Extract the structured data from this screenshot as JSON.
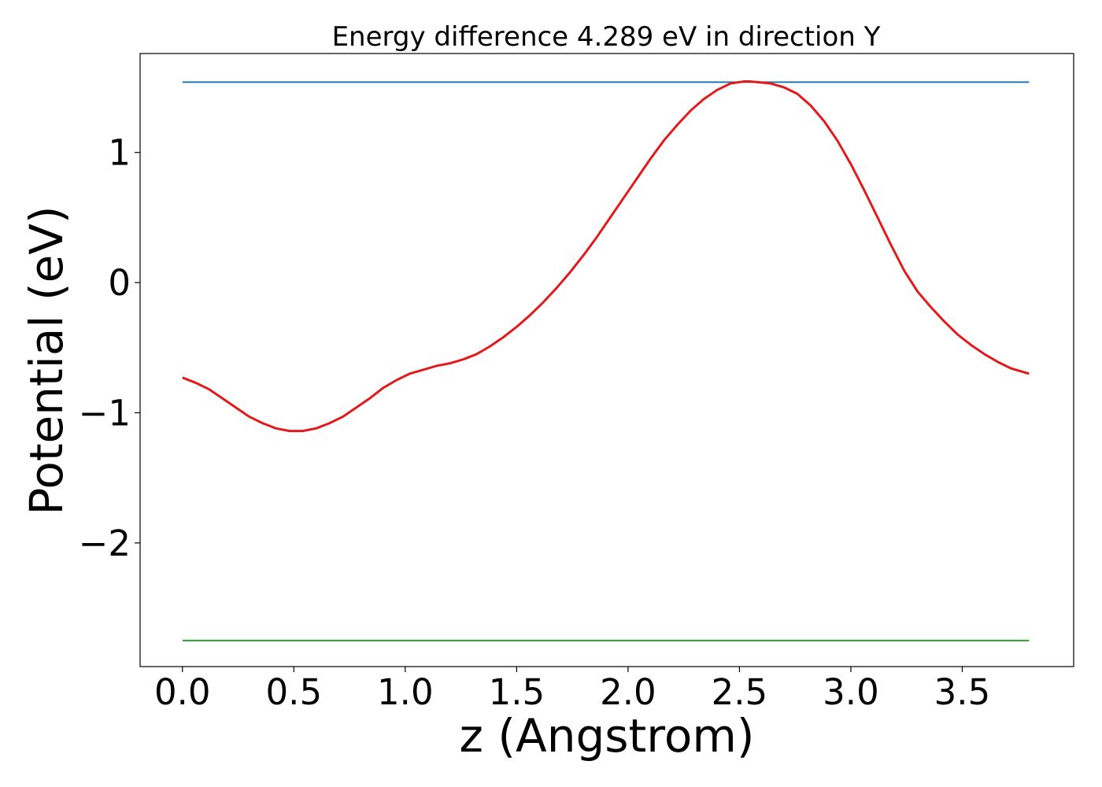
{
  "chart_data": {
    "type": "line",
    "title": "Energy difference 4.289 eV in direction Y",
    "xlabel": "z (Angstrom)",
    "ylabel": "Potential (eV)",
    "xlim": [
      -0.19,
      4.0
    ],
    "ylim": [
      -2.95,
      1.76
    ],
    "xticks": [
      0.0,
      0.5,
      1.0,
      1.5,
      2.0,
      2.5,
      3.0,
      3.5
    ],
    "xtick_labels": [
      "0.0",
      "0.5",
      "1.0",
      "1.5",
      "2.0",
      "2.5",
      "3.0",
      "3.5"
    ],
    "yticks": [
      -2,
      -1,
      0,
      1
    ],
    "ytick_labels": [
      "−2",
      "−1",
      "0",
      "1"
    ],
    "grid": false,
    "series": [
      {
        "color": "#1f77b4",
        "x": [
          0.0,
          3.8
        ],
        "y": [
          1.54,
          1.54
        ]
      },
      {
        "color": "#2ca02c",
        "x": [
          0.0,
          3.8
        ],
        "y": [
          -2.75,
          -2.75
        ]
      },
      {
        "color": "#e31a1c",
        "x": [
          0.0,
          0.06,
          0.12,
          0.18,
          0.24,
          0.3,
          0.36,
          0.42,
          0.48,
          0.54,
          0.6,
          0.66,
          0.72,
          0.78,
          0.84,
          0.9,
          0.96,
          1.02,
          1.08,
          1.14,
          1.2,
          1.26,
          1.32,
          1.38,
          1.44,
          1.5,
          1.56,
          1.62,
          1.68,
          1.74,
          1.8,
          1.86,
          1.92,
          1.98,
          2.04,
          2.1,
          2.16,
          2.22,
          2.28,
          2.34,
          2.4,
          2.46,
          2.52,
          2.55,
          2.58,
          2.64,
          2.7,
          2.76,
          2.82,
          2.88,
          2.94,
          3.0,
          3.06,
          3.12,
          3.18,
          3.24,
          3.3,
          3.36,
          3.42,
          3.48,
          3.54,
          3.6,
          3.66,
          3.72,
          3.8
        ],
        "y": [
          -0.73,
          -0.77,
          -0.82,
          -0.89,
          -0.96,
          -1.03,
          -1.08,
          -1.12,
          -1.14,
          -1.14,
          -1.12,
          -1.08,
          -1.03,
          -0.96,
          -0.89,
          -0.81,
          -0.75,
          -0.7,
          -0.67,
          -0.64,
          -0.62,
          -0.59,
          -0.55,
          -0.49,
          -0.42,
          -0.34,
          -0.25,
          -0.15,
          -0.04,
          0.08,
          0.21,
          0.35,
          0.5,
          0.65,
          0.8,
          0.95,
          1.09,
          1.21,
          1.32,
          1.41,
          1.48,
          1.53,
          1.545,
          1.545,
          1.54,
          1.53,
          1.5,
          1.45,
          1.36,
          1.24,
          1.09,
          0.91,
          0.71,
          0.5,
          0.29,
          0.09,
          -0.07,
          -0.19,
          -0.3,
          -0.4,
          -0.48,
          -0.55,
          -0.61,
          -0.66,
          -0.7
        ]
      }
    ]
  }
}
